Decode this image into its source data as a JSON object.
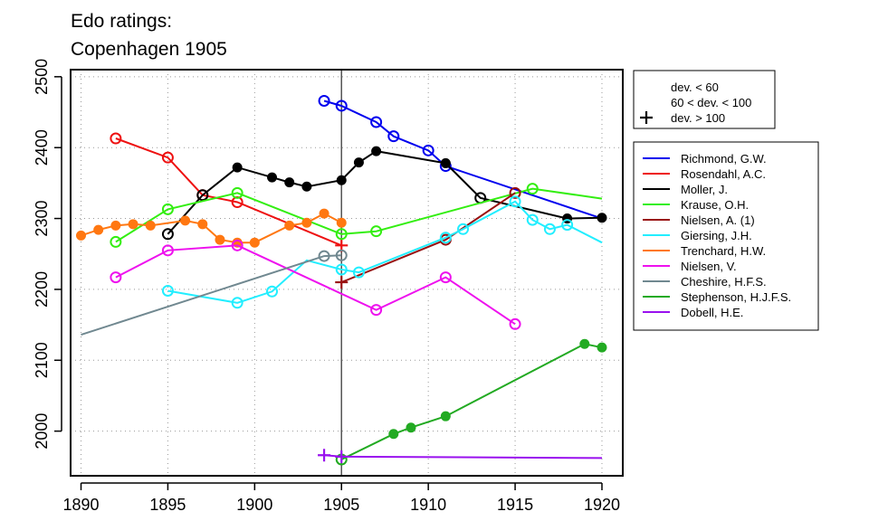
{
  "chart_data": {
    "type": "line",
    "title_lines": [
      "Edo ratings:",
      "Copenhagen 1905"
    ],
    "xlabel": "",
    "ylabel": "",
    "xlim": [
      1889.4,
      1921.2
    ],
    "ylim": [
      1937,
      2510
    ],
    "x_ticks": [
      1890,
      1895,
      1900,
      1905,
      1910,
      1915,
      1920
    ],
    "y_ticks": [
      2000,
      2100,
      2200,
      2300,
      2400,
      2500
    ],
    "grid": true,
    "reference_line_x": 1905,
    "marker_legend": [
      {
        "marker": "filled",
        "label": "dev. < 60"
      },
      {
        "marker": "open",
        "label": "60 < dev. < 100"
      },
      {
        "marker": "plus",
        "label": "dev. > 100"
      }
    ],
    "series": [
      {
        "name": "Richmond, G.W.",
        "color": "#0000ee",
        "points": [
          [
            1904,
            2466,
            "o"
          ],
          [
            1905,
            2459,
            "o"
          ],
          [
            1907,
            2436,
            "o"
          ],
          [
            1908,
            2416,
            "o"
          ],
          [
            1910,
            2396,
            "o"
          ],
          [
            1911,
            2374,
            "o"
          ],
          [
            1920,
            2300,
            null
          ]
        ]
      },
      {
        "name": "Rosendahl, A.C.",
        "color": "#ee1111",
        "points": [
          [
            1892,
            2413,
            "o"
          ],
          [
            1895,
            2386,
            "o"
          ],
          [
            1897,
            2333,
            "o"
          ],
          [
            1899,
            2323,
            "o"
          ],
          [
            1905,
            2262,
            "+"
          ]
        ]
      },
      {
        "name": "Moller, J.",
        "color": "#000000",
        "points": [
          [
            1895,
            2278,
            "o"
          ],
          [
            1897,
            2333,
            "o"
          ],
          [
            1899,
            2372,
            "f"
          ],
          [
            1901,
            2358,
            "f"
          ],
          [
            1902,
            2351,
            "f"
          ],
          [
            1903,
            2345,
            "f"
          ],
          [
            1905,
            2354,
            "f"
          ],
          [
            1906,
            2379,
            "f"
          ],
          [
            1907,
            2395,
            "f"
          ],
          [
            1911,
            2378,
            "f"
          ],
          [
            1913,
            2329,
            "o"
          ],
          [
            1918,
            2300,
            "f"
          ],
          [
            1920,
            2301,
            "f"
          ]
        ]
      },
      {
        "name": "Krause, O.H.",
        "color": "#33ee11",
        "points": [
          [
            1892,
            2267,
            "o"
          ],
          [
            1895,
            2313,
            "o"
          ],
          [
            1899,
            2336,
            "o"
          ],
          [
            1905,
            2278,
            "o"
          ],
          [
            1907,
            2282,
            "o"
          ],
          [
            1916,
            2342,
            "o"
          ],
          [
            1920,
            2328,
            null
          ]
        ]
      },
      {
        "name": "Nielsen, A. (1)",
        "color": "#991111",
        "points": [
          [
            1905,
            2210,
            "+"
          ],
          [
            1911,
            2270,
            "o"
          ],
          [
            1915,
            2336,
            "o"
          ]
        ]
      },
      {
        "name": "Giersing, J.H.",
        "color": "#22eeff",
        "points": [
          [
            1895,
            2198,
            "o"
          ],
          [
            1899,
            2181,
            "o"
          ],
          [
            1901,
            2197,
            "o"
          ],
          [
            1903,
            2241,
            null
          ],
          [
            1905,
            2228,
            "o"
          ],
          [
            1906,
            2224,
            "o"
          ],
          [
            1911,
            2273,
            "o"
          ],
          [
            1912,
            2285,
            "o"
          ],
          [
            1915,
            2324,
            "o"
          ],
          [
            1916,
            2298,
            "o"
          ],
          [
            1917,
            2285,
            "o"
          ],
          [
            1918,
            2291,
            "o"
          ],
          [
            1920,
            2266,
            null
          ]
        ]
      },
      {
        "name": "Trenchard, H.W.",
        "color": "#ff7711",
        "points": [
          [
            1890,
            2276,
            "f"
          ],
          [
            1891,
            2284,
            "f"
          ],
          [
            1892,
            2290,
            "f"
          ],
          [
            1893,
            2292,
            "f"
          ],
          [
            1894,
            2290,
            "f"
          ],
          [
            1896,
            2297,
            "f"
          ],
          [
            1897,
            2292,
            "f"
          ],
          [
            1898,
            2270,
            "f"
          ],
          [
            1899,
            2266,
            "f"
          ],
          [
            1900,
            2266,
            "f"
          ],
          [
            1902,
            2290,
            "f"
          ],
          [
            1903,
            2294,
            "f"
          ],
          [
            1904,
            2307,
            "f"
          ],
          [
            1905,
            2294,
            "f"
          ]
        ]
      },
      {
        "name": "Nielsen, V.",
        "color": "#ee11ee",
        "points": [
          [
            1892,
            2217,
            "o"
          ],
          [
            1895,
            2255,
            "o"
          ],
          [
            1899,
            2262,
            "o"
          ],
          [
            1907,
            2171,
            "o"
          ],
          [
            1911,
            2217,
            "o"
          ],
          [
            1915,
            2151,
            "o"
          ]
        ]
      },
      {
        "name": "Cheshire, H.F.S.",
        "color": "#708890",
        "points": [
          [
            1890,
            2136,
            null
          ],
          [
            1904,
            2247,
            "o"
          ],
          [
            1905,
            2248,
            "o"
          ]
        ]
      },
      {
        "name": "Stephenson, H.J.F.S.",
        "color": "#22aa22",
        "points": [
          [
            1905,
            1960,
            "o"
          ],
          [
            1908,
            1996,
            "f"
          ],
          [
            1909,
            2005,
            "f"
          ],
          [
            1911,
            2021,
            "f"
          ],
          [
            1919,
            2123,
            "f"
          ],
          [
            1920,
            2118,
            "f"
          ]
        ]
      },
      {
        "name": "Dobell, H.E.",
        "color": "#9911ee",
        "points": [
          [
            1904,
            1966,
            "+"
          ],
          [
            1905,
            1964,
            "+"
          ],
          [
            1920,
            1962,
            null
          ]
        ]
      }
    ]
  }
}
